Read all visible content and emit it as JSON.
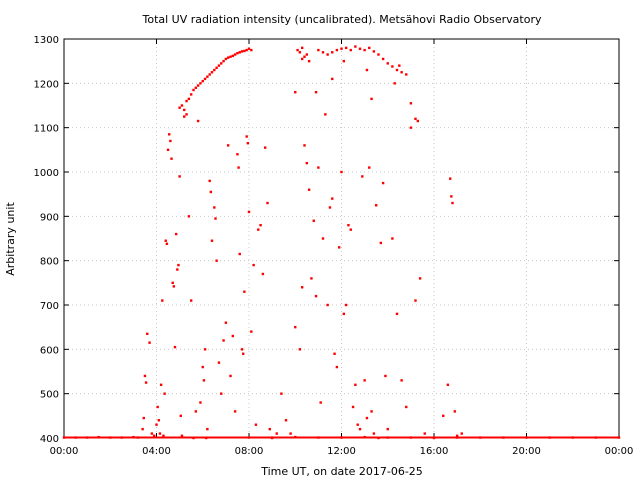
{
  "chart_data": {
    "type": "scatter",
    "title": "Total UV radiation intensity (uncalibrated). Metsähovi Radio Observatory",
    "xlabel": "Time UT, on date 2017-06-25",
    "ylabel": "Arbitrary unit",
    "xlim": [
      "00:00",
      "24:00"
    ],
    "ylim": [
      400,
      1300
    ],
    "x_ticks": [
      "00:00",
      "04:00",
      "08:00",
      "12:00",
      "16:00",
      "20:00",
      "00:00"
    ],
    "y_ticks": [
      400,
      500,
      600,
      700,
      800,
      900,
      1000,
      1100,
      1200,
      1300
    ],
    "grid": true,
    "marker_color": "#ff0000",
    "series": [
      {
        "x_unit": "hours UT",
        "points": [
          [
            0.0,
            401
          ],
          [
            0.5,
            401
          ],
          [
            1.0,
            401
          ],
          [
            1.5,
            402
          ],
          [
            2.0,
            401
          ],
          [
            2.5,
            401
          ],
          [
            3.0,
            402
          ],
          [
            3.2,
            401
          ],
          [
            3.4,
            420
          ],
          [
            3.45,
            445
          ],
          [
            3.5,
            540
          ],
          [
            3.55,
            525
          ],
          [
            3.6,
            635
          ],
          [
            3.7,
            615
          ],
          [
            3.8,
            410
          ],
          [
            3.9,
            405
          ],
          [
            4.0,
            430
          ],
          [
            4.05,
            470
          ],
          [
            4.1,
            440
          ],
          [
            4.15,
            410
          ],
          [
            4.2,
            520
          ],
          [
            4.25,
            710
          ],
          [
            4.3,
            405
          ],
          [
            4.35,
            500
          ],
          [
            4.4,
            845
          ],
          [
            4.45,
            838
          ],
          [
            4.5,
            1050
          ],
          [
            4.55,
            1085
          ],
          [
            4.6,
            1070
          ],
          [
            4.65,
            1030
          ],
          [
            4.7,
            750
          ],
          [
            4.75,
            742
          ],
          [
            4.8,
            605
          ],
          [
            4.85,
            860
          ],
          [
            4.9,
            780
          ],
          [
            4.95,
            790
          ],
          [
            5.0,
            990
          ],
          [
            5.05,
            450
          ],
          [
            5.1,
            405
          ],
          [
            5.0,
            1145
          ],
          [
            5.1,
            1150
          ],
          [
            5.2,
            1140
          ],
          [
            5.3,
            1160
          ],
          [
            5.4,
            1165
          ],
          [
            5.5,
            1175
          ],
          [
            5.6,
            1185
          ],
          [
            5.7,
            1190
          ],
          [
            5.8,
            1195
          ],
          [
            5.9,
            1200
          ],
          [
            6.0,
            1205
          ],
          [
            6.1,
            1210
          ],
          [
            6.2,
            1215
          ],
          [
            6.3,
            1220
          ],
          [
            6.4,
            1225
          ],
          [
            6.5,
            1230
          ],
          [
            6.6,
            1235
          ],
          [
            6.7,
            1240
          ],
          [
            6.8,
            1245
          ],
          [
            6.9,
            1250
          ],
          [
            7.0,
            1255
          ],
          [
            7.1,
            1258
          ],
          [
            7.2,
            1260
          ],
          [
            7.3,
            1262
          ],
          [
            7.4,
            1265
          ],
          [
            7.5,
            1268
          ],
          [
            7.6,
            1270
          ],
          [
            7.7,
            1272
          ],
          [
            7.8,
            1273
          ],
          [
            7.9,
            1275
          ],
          [
            8.0,
            1278
          ],
          [
            8.1,
            1275
          ],
          [
            5.2,
            1125
          ],
          [
            5.3,
            1130
          ],
          [
            5.4,
            900
          ],
          [
            5.5,
            710
          ],
          [
            5.6,
            400
          ],
          [
            5.7,
            460
          ],
          [
            5.8,
            1115
          ],
          [
            5.9,
            480
          ],
          [
            6.0,
            560
          ],
          [
            6.05,
            530
          ],
          [
            6.1,
            600
          ],
          [
            6.15,
            400
          ],
          [
            6.2,
            420
          ],
          [
            6.3,
            980
          ],
          [
            6.35,
            955
          ],
          [
            6.4,
            845
          ],
          [
            6.5,
            920
          ],
          [
            6.55,
            895
          ],
          [
            6.6,
            800
          ],
          [
            6.7,
            570
          ],
          [
            6.8,
            500
          ],
          [
            6.9,
            620
          ],
          [
            7.0,
            660
          ],
          [
            7.1,
            1060
          ],
          [
            7.2,
            540
          ],
          [
            7.3,
            630
          ],
          [
            7.4,
            460
          ],
          [
            7.5,
            1040
          ],
          [
            7.55,
            1010
          ],
          [
            7.6,
            815
          ],
          [
            7.7,
            600
          ],
          [
            7.75,
            590
          ],
          [
            7.8,
            730
          ],
          [
            7.9,
            1080
          ],
          [
            7.95,
            1065
          ],
          [
            8.0,
            910
          ],
          [
            8.1,
            640
          ],
          [
            8.2,
            790
          ],
          [
            8.3,
            430
          ],
          [
            8.4,
            870
          ],
          [
            8.5,
            880
          ],
          [
            8.6,
            770
          ],
          [
            8.7,
            1055
          ],
          [
            8.8,
            930
          ],
          [
            8.9,
            420
          ],
          [
            9.0,
            400
          ],
          [
            9.2,
            410
          ],
          [
            9.4,
            500
          ],
          [
            9.6,
            440
          ],
          [
            9.8,
            410
          ],
          [
            10.0,
            650
          ],
          [
            10.2,
            600
          ],
          [
            10.3,
            740
          ],
          [
            10.4,
            1060
          ],
          [
            10.5,
            1020
          ],
          [
            10.6,
            960
          ],
          [
            10.7,
            760
          ],
          [
            10.8,
            890
          ],
          [
            10.9,
            720
          ],
          [
            11.0,
            1010
          ],
          [
            11.1,
            480
          ],
          [
            11.2,
            850
          ],
          [
            11.3,
            1130
          ],
          [
            11.4,
            700
          ],
          [
            11.5,
            920
          ],
          [
            11.6,
            940
          ],
          [
            11.7,
            590
          ],
          [
            11.8,
            560
          ],
          [
            11.9,
            830
          ],
          [
            12.0,
            1000
          ],
          [
            12.1,
            680
          ],
          [
            12.2,
            700
          ],
          [
            12.3,
            880
          ],
          [
            12.4,
            870
          ],
          [
            12.5,
            470
          ],
          [
            12.6,
            520
          ],
          [
            12.7,
            430
          ],
          [
            12.8,
            420
          ],
          [
            12.9,
            990
          ],
          [
            13.0,
            530
          ],
          [
            13.1,
            445
          ],
          [
            13.2,
            1010
          ],
          [
            13.3,
            460
          ],
          [
            13.4,
            410
          ],
          [
            13.5,
            925
          ],
          [
            13.6,
            400
          ],
          [
            13.7,
            840
          ],
          [
            13.8,
            975
          ],
          [
            13.9,
            540
          ],
          [
            14.0,
            420
          ],
          [
            14.2,
            850
          ],
          [
            14.4,
            680
          ],
          [
            14.6,
            530
          ],
          [
            14.8,
            470
          ],
          [
            15.0,
            1100
          ],
          [
            15.2,
            710
          ],
          [
            15.4,
            760
          ],
          [
            15.6,
            410
          ],
          [
            16.0,
            400
          ],
          [
            16.4,
            450
          ],
          [
            16.6,
            520
          ],
          [
            16.7,
            985
          ],
          [
            16.75,
            945
          ],
          [
            16.8,
            930
          ],
          [
            16.9,
            460
          ],
          [
            17.0,
            405
          ],
          [
            17.2,
            410
          ],
          [
            10.1,
            1275
          ],
          [
            10.2,
            1270
          ],
          [
            10.3,
            1280
          ],
          [
            10.4,
            1260
          ],
          [
            10.5,
            1265
          ],
          [
            10.6,
            1250
          ],
          [
            11.0,
            1275
          ],
          [
            11.2,
            1270
          ],
          [
            11.4,
            1265
          ],
          [
            11.6,
            1270
          ],
          [
            11.8,
            1275
          ],
          [
            12.0,
            1278
          ],
          [
            12.2,
            1280
          ],
          [
            12.4,
            1275
          ],
          [
            12.6,
            1283
          ],
          [
            12.8,
            1278
          ],
          [
            13.0,
            1275
          ],
          [
            13.2,
            1280
          ],
          [
            13.4,
            1272
          ],
          [
            13.6,
            1265
          ],
          [
            13.8,
            1255
          ],
          [
            14.0,
            1245
          ],
          [
            14.2,
            1238
          ],
          [
            14.4,
            1230
          ],
          [
            14.6,
            1225
          ],
          [
            14.8,
            1220
          ],
          [
            15.0,
            1155
          ],
          [
            15.2,
            1120
          ],
          [
            10.0,
            1180
          ],
          [
            10.3,
            1255
          ],
          [
            10.9,
            1180
          ],
          [
            11.6,
            1210
          ],
          [
            12.1,
            1250
          ],
          [
            13.1,
            1230
          ],
          [
            13.3,
            1165
          ],
          [
            14.3,
            1200
          ],
          [
            14.5,
            1240
          ],
          [
            15.3,
            1115
          ],
          [
            8.0,
            401
          ],
          [
            9.0,
            401
          ],
          [
            10.0,
            402
          ],
          [
            11.0,
            401
          ],
          [
            12.0,
            401
          ],
          [
            13.0,
            402
          ],
          [
            14.0,
            401
          ],
          [
            15.0,
            401
          ],
          [
            16.0,
            401
          ],
          [
            17.0,
            401
          ],
          [
            18.0,
            401
          ],
          [
            19.0,
            401
          ],
          [
            20.0,
            401
          ],
          [
            21.0,
            401
          ],
          [
            22.0,
            401
          ],
          [
            23.0,
            401
          ],
          [
            24.0,
            401
          ]
        ]
      }
    ]
  }
}
